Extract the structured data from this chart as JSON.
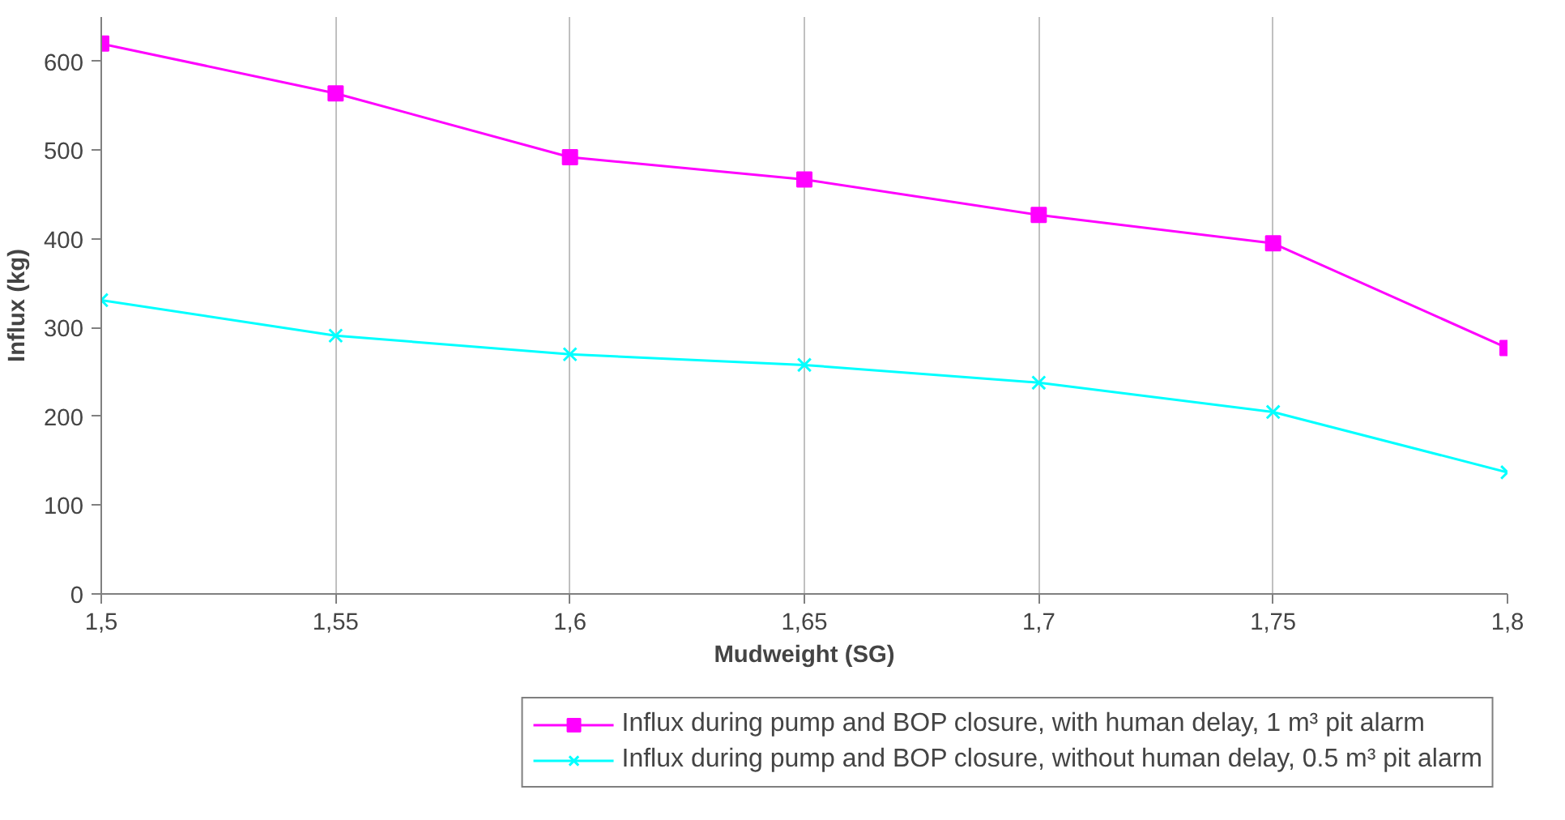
{
  "chart_data": {
    "type": "line",
    "xlabel": "Mudweight (SG)",
    "ylabel": "Influx (kg)",
    "x": [
      1.5,
      1.55,
      1.6,
      1.65,
      1.7,
      1.75,
      1.8
    ],
    "series": [
      {
        "name": "Influx during pump and BOP closure, with human delay, 1 m³ pit alarm",
        "color": "#ff00ff",
        "marker": "square",
        "values": [
          620,
          564,
          492,
          467,
          427,
          395,
          277
        ]
      },
      {
        "name": "Influx during pump and BOP closure, without human delay, 0.5 m³ pit alarm",
        "color": "#00ffff",
        "marker": "cross",
        "values": [
          331,
          291,
          270,
          258,
          238,
          205,
          137
        ]
      }
    ],
    "xlim": [
      1.5,
      1.8
    ],
    "xticks": [
      {
        "value": 1.5,
        "label": "1,5"
      },
      {
        "value": 1.55,
        "label": "1,55"
      },
      {
        "value": 1.6,
        "label": "1,6"
      },
      {
        "value": 1.65,
        "label": "1,65"
      },
      {
        "value": 1.7,
        "label": "1,7"
      },
      {
        "value": 1.75,
        "label": "1,75"
      },
      {
        "value": 1.8,
        "label": "1,8"
      }
    ],
    "ylim": [
      0,
      650
    ],
    "yticks": [
      0,
      100,
      200,
      300,
      400,
      500,
      600
    ],
    "grid": "x",
    "legend": "bottom",
    "line_style": "solid"
  }
}
